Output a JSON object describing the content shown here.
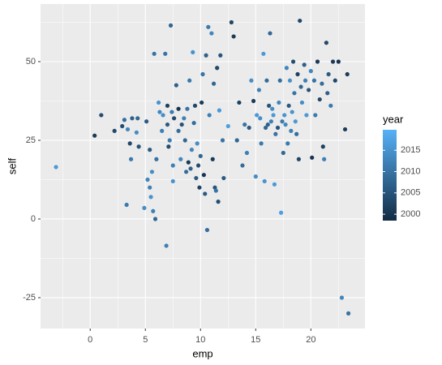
{
  "chart_data": {
    "type": "scatter",
    "x_label": "emp",
    "y_label": "self",
    "legend_title": "year",
    "xlim": [
      -4.5,
      24.9
    ],
    "xticks": [
      0,
      5,
      10,
      15,
      20
    ],
    "ylim": [
      -34.8,
      68.3
    ],
    "yticks": [
      -25,
      0,
      25,
      50
    ],
    "color_lim": [
      1998.5,
      2019.8
    ],
    "color_ticks": [
      2000,
      2005,
      2010,
      2015
    ],
    "color_low": "#132B43",
    "color_high": "#56B1F7",
    "grid": true,
    "x": [
      -3.1,
      0.4,
      1,
      2.2,
      2.9,
      3.1,
      3.4,
      3.3,
      3.6,
      3.8,
      3.7,
      4.2,
      4.3,
      4.4,
      4.9,
      5.1,
      5.2,
      5.4,
      5.5,
      5.6,
      5.7,
      5.4,
      5.8,
      5.9,
      6,
      6.2,
      6.3,
      6.5,
      6.6,
      6.8,
      6.9,
      7,
      7,
      7.1,
      7.2,
      7.3,
      7.4,
      7.5,
      7.5,
      7.6,
      7.8,
      8,
      8,
      8.2,
      8.3,
      8.5,
      8.6,
      8.7,
      8.8,
      8.9,
      9,
      9.1,
      9.2,
      9.3,
      9.4,
      9.5,
      9.6,
      9.7,
      9.8,
      9.9,
      10,
      10.1,
      10.2,
      10.3,
      10.4,
      10.5,
      10.6,
      10.7,
      10.8,
      11,
      11.1,
      11.2,
      11.3,
      11.4,
      11.5,
      11.6,
      11.7,
      11.8,
      12,
      12.1,
      12.5,
      12.8,
      13,
      13.3,
      13.5,
      13.8,
      14,
      14.2,
      14.4,
      14.6,
      14.8,
      15,
      15.1,
      15.3,
      15.5,
      15.7,
      15.8,
      16,
      16.1,
      16.3,
      16.4,
      16.5,
      16.7,
      16.8,
      17,
      17.1,
      17.2,
      17.3,
      17.5,
      17.6,
      17.8,
      17.9,
      18,
      18.1,
      18.2,
      18.4,
      18.5,
      18.6,
      18.8,
      18.9,
      19,
      19.1,
      19.2,
      19.4,
      19.5,
      19.6,
      19.8,
      20,
      20.1,
      20.3,
      20.4,
      20.6,
      20.8,
      21,
      21.1,
      21.2,
      21.4,
      21.5,
      21.6,
      21.8,
      22,
      22.2,
      22.5,
      22.8,
      23.1,
      23.3,
      23.4,
      15.4,
      15.9,
      16.6,
      17.4,
      18.3,
      18.7,
      16.2,
      17.7
    ],
    "y": [
      16.5,
      26.5,
      33,
      28,
      29.5,
      31.5,
      28.5,
      4.5,
      24,
      32,
      19,
      27.5,
      32,
      23,
      3.5,
      31,
      12.5,
      10,
      7,
      15,
      2.5,
      22,
      52.5,
      0,
      19,
      37,
      34,
      28,
      33,
      52.5,
      -8.5,
      36,
      30,
      23,
      25,
      61.5,
      34,
      12,
      17,
      32,
      42.5,
      35,
      28,
      19,
      30,
      32,
      25,
      15,
      35,
      18,
      44,
      16,
      22,
      53,
      30.5,
      36,
      13,
      24,
      17,
      10,
      20,
      37,
      46,
      14,
      8,
      52,
      -3.5,
      61,
      33,
      59,
      19,
      43,
      10,
      9,
      48,
      5.5,
      34.5,
      52,
      25,
      13,
      29.5,
      62.5,
      58,
      25,
      37,
      17,
      30,
      21,
      29,
      44,
      37.5,
      13.5,
      33,
      41,
      24,
      52.5,
      12,
      44,
      30,
      59,
      31,
      35,
      11,
      27,
      29,
      37,
      44,
      2,
      21,
      33,
      48,
      24,
      36,
      44,
      28,
      50,
      40,
      31,
      46,
      19,
      63,
      42,
      37,
      49,
      44,
      33,
      41,
      47,
      19.5,
      44,
      33,
      50,
      38,
      43,
      23,
      19,
      56,
      40,
      46,
      36,
      50,
      44,
      50,
      -25,
      28.5,
      46,
      -30,
      32,
      29,
      33,
      31,
      34,
      27,
      36,
      30
    ],
    "color_values": [
      2016,
      2001,
      2004,
      2003,
      2004,
      2009,
      2013,
      2011,
      2003,
      2007,
      2011,
      2014,
      2008,
      2005,
      2014,
      2006,
      2013,
      2012,
      2015,
      2014,
      2012,
      2006,
      2010,
      2008,
      2010,
      2015,
      2013,
      2012,
      2014,
      2010,
      2012,
      2002,
      2006,
      2004,
      2011,
      2008,
      2011,
      2015,
      2012,
      2003,
      2007,
      2000,
      2009,
      2013,
      2005,
      2012,
      2008,
      2009,
      2010,
      2001,
      2011,
      2007,
      2013,
      2015,
      2009,
      2003,
      2006,
      2014,
      2004,
      2002,
      2008,
      2001,
      2010,
      2000,
      2006,
      2007,
      2009,
      2011,
      2012,
      2013,
      2001,
      2008,
      2005,
      2010,
      2003,
      2004,
      2016,
      2005,
      2010,
      2006,
      2017,
      2003,
      2001,
      2008,
      2002,
      2009,
      2010,
      2012,
      2006,
      2014,
      2001,
      2014,
      2016,
      2012,
      2011,
      2016,
      2015,
      2009,
      2007,
      2008,
      2012,
      2014,
      2016,
      2010,
      2005,
      2013,
      2009,
      2017,
      2008,
      2015,
      2013,
      2011,
      2006,
      2015,
      2012,
      2004,
      2010,
      2016,
      2002,
      2003,
      2003,
      2008,
      2014,
      2007,
      2012,
      2016,
      2005,
      2013,
      2000,
      2010,
      2011,
      2001,
      2003,
      2009,
      2002,
      2012,
      2003,
      2007,
      2006,
      2011,
      2001,
      2003,
      2000,
      2013,
      2001,
      2001,
      2010,
      2014,
      2008,
      2016,
      2011,
      2015,
      2009,
      2005,
      2013
    ]
  }
}
